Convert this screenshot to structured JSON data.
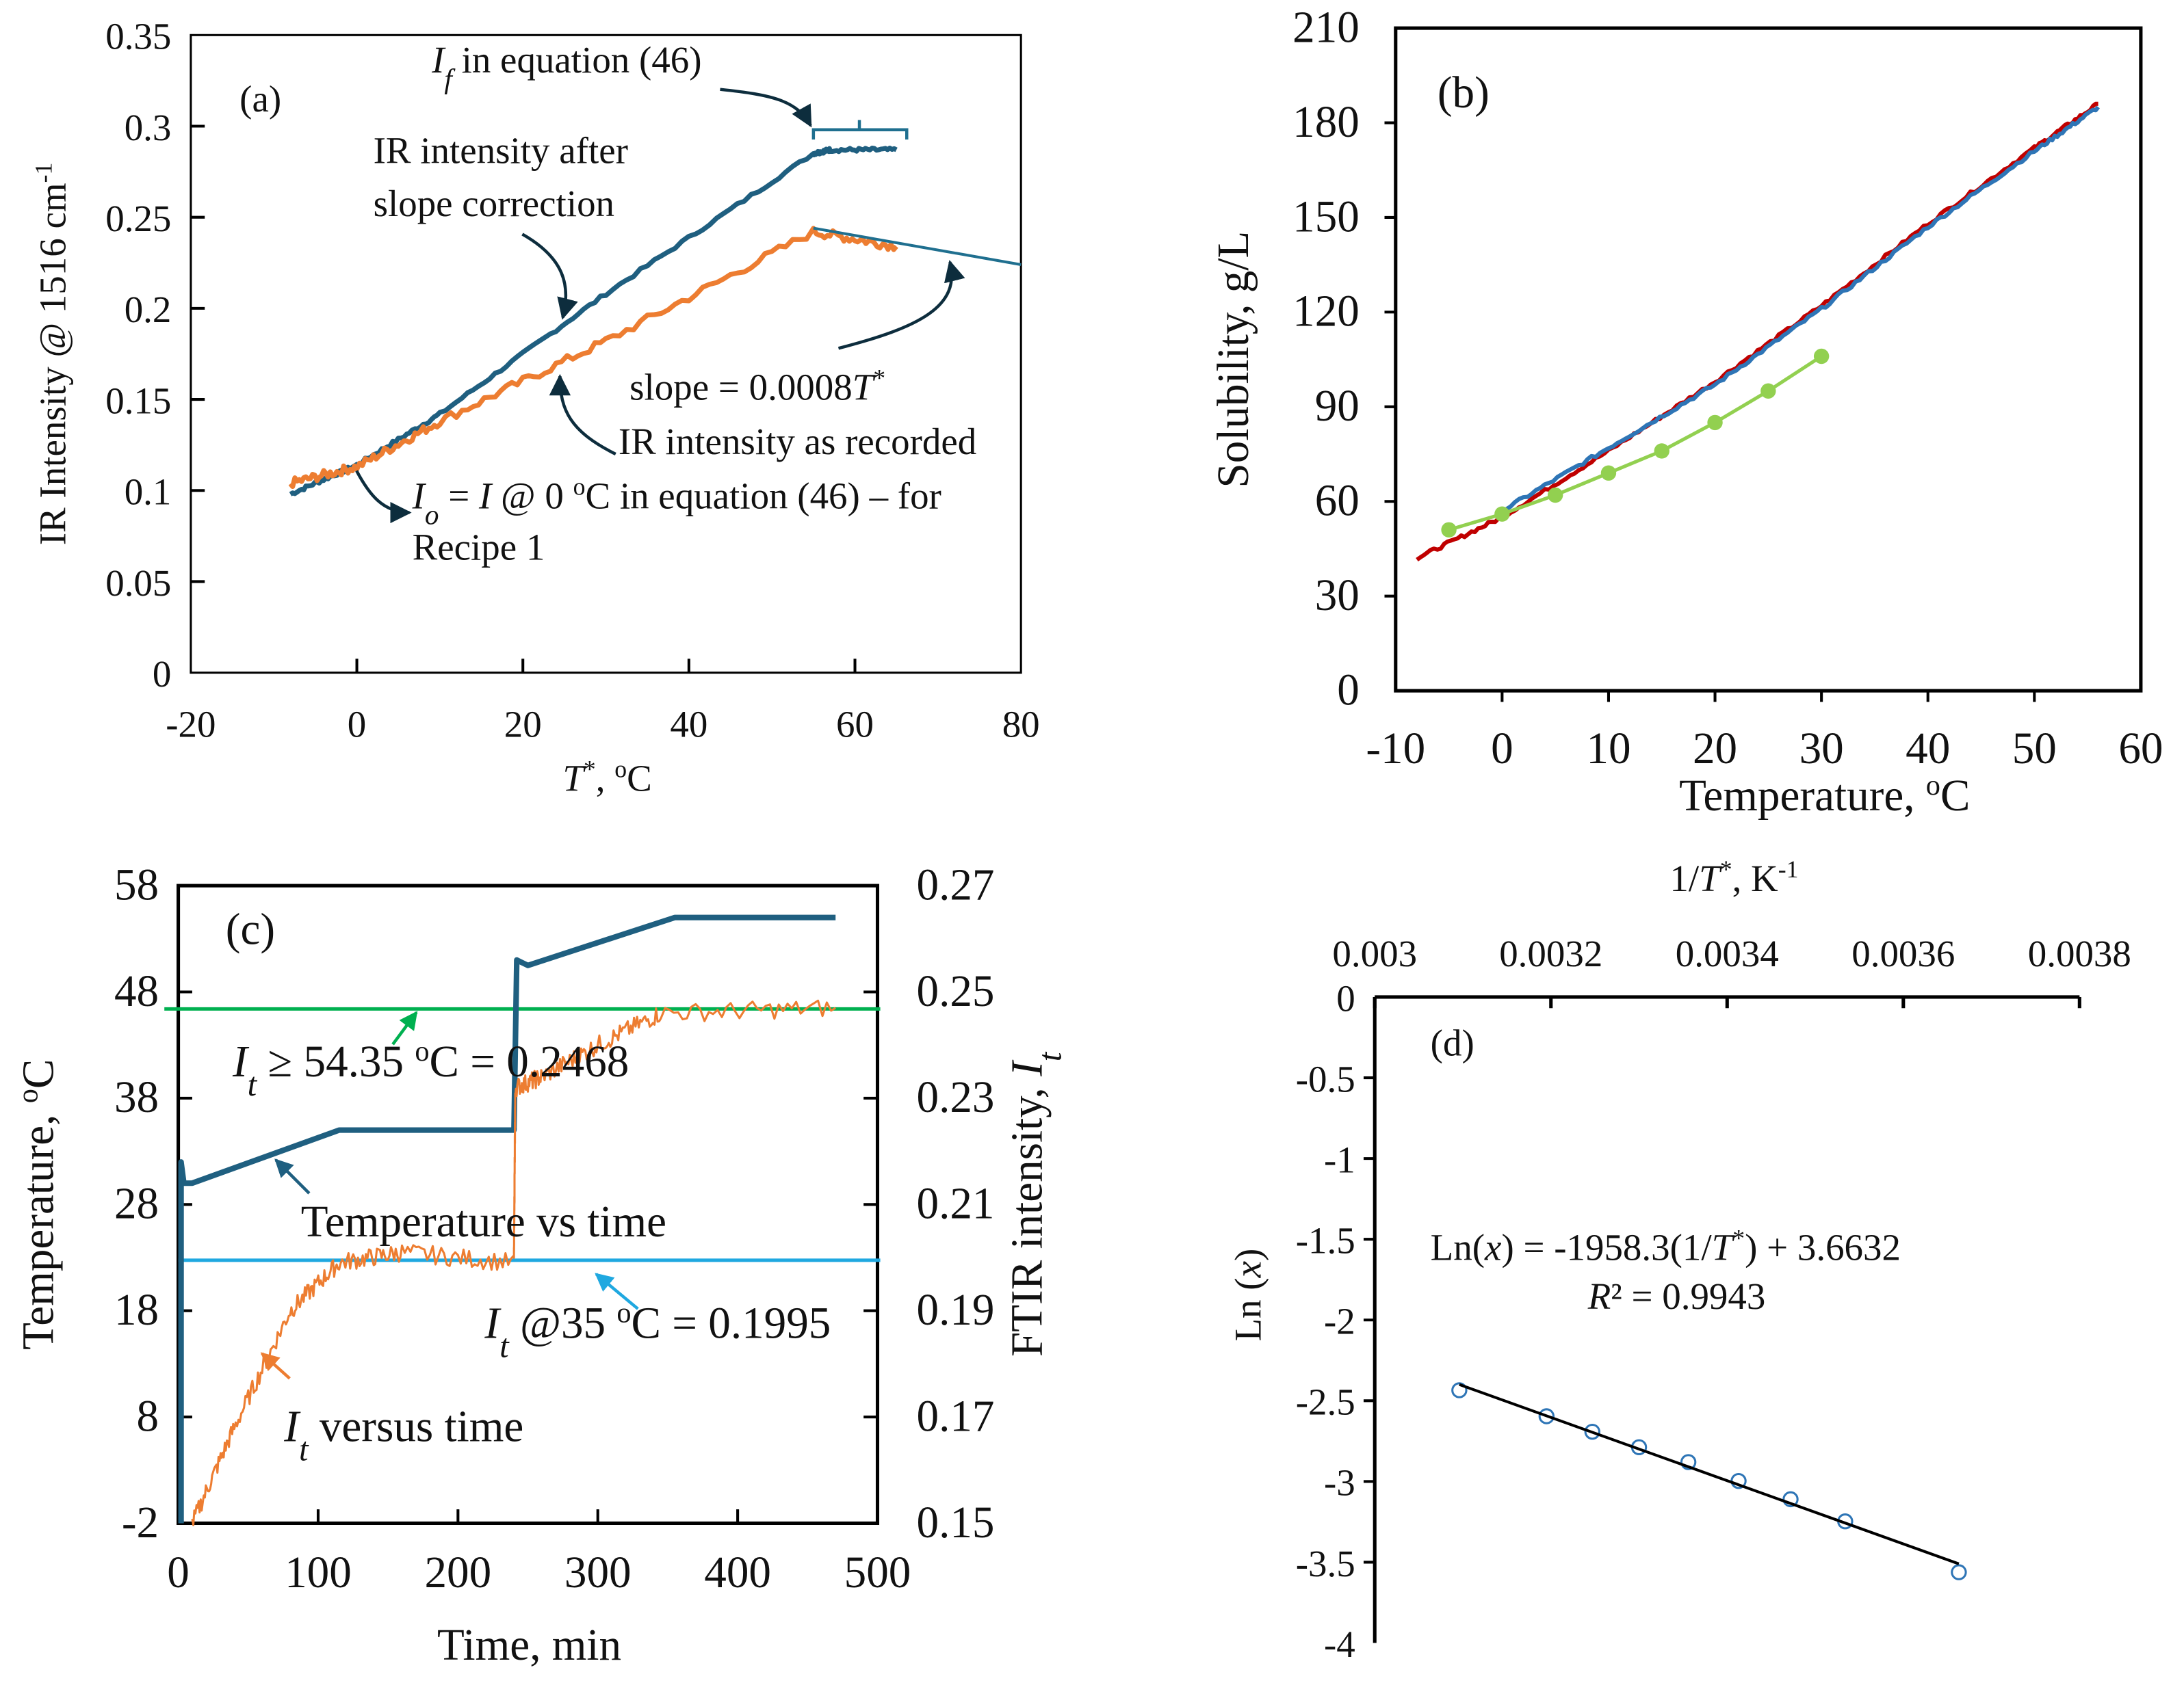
{
  "chart_data": [
    {
      "id": "a",
      "type": "line",
      "panel_label": "(a)",
      "xlabel": [
        {
          "t": "T",
          "i": true
        },
        {
          "t": "*",
          "sup": true
        },
        {
          "t": ", "
        },
        {
          "t": "o",
          "sup": true
        },
        {
          "t": "C"
        }
      ],
      "ylabel": [
        {
          "t": "IR Intensity @ 1516 cm"
        },
        {
          "t": "-1",
          "sup": true
        }
      ],
      "xlim": [
        -20,
        80
      ],
      "ylim": [
        0,
        0.35
      ],
      "xticks": [
        "-20",
        "0",
        "20",
        "40",
        "60",
        "80"
      ],
      "yticks": [
        "0",
        "0.05",
        "0.1",
        "0.15",
        "0.2",
        "0.25",
        "0.3",
        "0.35"
      ],
      "series": [
        {
          "name": "IR intensity after slope correction",
          "color": "#1f5f80",
          "x": [
            -8,
            0,
            10,
            30,
            55,
            57,
            65
          ],
          "y": [
            0.098,
            0.114,
            0.142,
            0.208,
            0.285,
            0.287,
            0.287
          ]
        },
        {
          "name": "IR intensity as recorded",
          "color": "#ed7d31",
          "x": [
            -8,
            0,
            10,
            30,
            55,
            65
          ],
          "y": [
            0.104,
            0.113,
            0.138,
            0.182,
            0.242,
            0.234
          ]
        },
        {
          "name": "slope line",
          "color": "#1f6f8f",
          "x": [
            55,
            80
          ],
          "y": [
            0.244,
            0.224
          ]
        }
      ],
      "annotations": [
        [
          {
            "t": "I",
            "i": true
          },
          {
            "t": "f",
            "sub": true,
            "i": true
          },
          {
            "t": " in equation (46)"
          }
        ],
        [
          {
            "t": "IR intensity after"
          }
        ],
        [
          {
            "t": "slope correction"
          }
        ],
        [
          {
            "t": "slope = 0.0008"
          },
          {
            "t": "T",
            "i": true
          },
          {
            "t": "*",
            "sup": true
          }
        ],
        [
          {
            "t": "IR intensity as recorded"
          }
        ],
        [
          {
            "t": "I",
            "i": true
          },
          {
            "t": "o",
            "sub": true,
            "i": true
          },
          {
            "t": " = "
          },
          {
            "t": "I",
            "i": true
          },
          {
            "t": " @ 0 "
          },
          {
            "t": "o",
            "sup": true
          },
          {
            "t": "C in equation (46) – for"
          }
        ],
        [
          {
            "t": "Recipe  1"
          }
        ]
      ]
    },
    {
      "id": "b",
      "type": "line",
      "panel_label": "(b)",
      "xlabel": [
        {
          "t": "Temperature, "
        },
        {
          "t": "o",
          "sup": true
        },
        {
          "t": "C"
        }
      ],
      "ylabel": [
        {
          "t": "Solubility, g/L"
        }
      ],
      "xlim": [
        -10,
        60
      ],
      "ylim": [
        0,
        210
      ],
      "xticks": [
        "-10",
        "0",
        "10",
        "20",
        "30",
        "40",
        "50",
        "60"
      ],
      "yticks": [
        "0",
        "30",
        "60",
        "90",
        "120",
        "150",
        "180",
        "210"
      ],
      "series": [
        {
          "name": "red fit",
          "color": "#c00000",
          "x": [
            -8,
            0,
            10,
            20,
            30,
            40,
            50,
            56
          ],
          "y": [
            42,
            55,
            76,
            98,
            122,
            148,
            172,
            186
          ]
        },
        {
          "name": "blue measured",
          "color": "#2e75b6",
          "x": [
            0,
            10,
            20,
            30,
            40,
            50,
            56
          ],
          "y": [
            57,
            77,
            97,
            121,
            147,
            171,
            185
          ]
        },
        {
          "name": "green points",
          "color": "#92d050",
          "markers": true,
          "x": [
            -5,
            0,
            5,
            10,
            15,
            20,
            25,
            30
          ],
          "y": [
            51,
            56,
            62,
            69,
            76,
            85,
            95,
            106
          ]
        }
      ]
    },
    {
      "id": "c",
      "type": "line",
      "panel_label": "(c)",
      "xlabel": [
        {
          "t": "Time, min"
        }
      ],
      "ylabel": [
        {
          "t": "Temperature, "
        },
        {
          "t": "o",
          "sup": true
        },
        {
          "t": "C"
        }
      ],
      "y2label": [
        {
          "t": "FTIR intensity, "
        },
        {
          "t": "I",
          "i": true
        },
        {
          "t": "t",
          "sub": true,
          "i": true
        }
      ],
      "xlim": [
        0,
        500
      ],
      "ylim": [
        -2,
        58
      ],
      "y2lim": [
        0.15,
        0.27
      ],
      "xticks": [
        "0",
        "100",
        "200",
        "300",
        "400",
        "500"
      ],
      "yticks": [
        "-2",
        "8",
        "18",
        "28",
        "38",
        "48",
        "58"
      ],
      "y2ticks": [
        "0.15",
        "0.17",
        "0.19",
        "0.21",
        "0.23",
        "0.25",
        "0.27"
      ],
      "series": [
        {
          "name": "Temperature vs time",
          "axis": "left",
          "color": "#1f5f80",
          "x": [
            2,
            2,
            4,
            10,
            115,
            240,
            242,
            250,
            355,
            470
          ],
          "y": [
            -2,
            32,
            30,
            30,
            35,
            35,
            51,
            50.5,
            55,
            55
          ]
        },
        {
          "name": "It versus time",
          "axis": "right",
          "color": "#ed7d31",
          "noisy": true,
          "x": [
            10,
            40,
            80,
            115,
            160,
            240,
            241,
            260,
            300,
            345,
            470
          ],
          "y": [
            0.15,
            0.168,
            0.19,
            0.199,
            0.201,
            0.199,
            0.232,
            0.234,
            0.24,
            0.246,
            0.247
          ]
        }
      ],
      "hlines": [
        {
          "axis": "right",
          "value": 0.2468,
          "color": "#00b050"
        },
        {
          "axis": "right",
          "value": 0.1995,
          "color": "#1fa8e0"
        }
      ],
      "annotations": [
        [
          {
            "t": "I",
            "i": true
          },
          {
            "t": "t",
            "sub": true,
            "i": true
          },
          {
            "t": " ≥ 54.35 "
          },
          {
            "t": "o",
            "sup": true
          },
          {
            "t": "C = 0.2468"
          }
        ],
        [
          {
            "t": "Temperature vs time"
          }
        ],
        [
          {
            "t": "I",
            "i": true
          },
          {
            "t": "t",
            "sub": true,
            "i": true
          },
          {
            "t": " @35 "
          },
          {
            "t": "o",
            "sup": true
          },
          {
            "t": "C = 0.1995"
          }
        ],
        [
          {
            "t": "I",
            "i": true
          },
          {
            "t": "t",
            "sub": true,
            "i": true
          },
          {
            "t": " versus time"
          }
        ]
      ]
    },
    {
      "id": "d",
      "type": "scatter",
      "panel_label": "(d)",
      "xlabel": [
        {
          "t": "1/"
        },
        {
          "t": "T",
          "i": true
        },
        {
          "t": "*",
          "sup": true
        },
        {
          "t": ", K"
        },
        {
          "t": "-1",
          "sup": true
        }
      ],
      "ylabel": [
        {
          "t": "Ln ("
        },
        {
          "t": "x",
          "i": true
        },
        {
          "t": ")"
        }
      ],
      "xlim": [
        0.003,
        0.0038
      ],
      "ylim": [
        -4,
        0
      ],
      "xticks": [
        "0.003",
        "0.0032",
        "0.0034",
        "0.0036",
        "0.0038"
      ],
      "yticks": [
        "-4",
        "-3.5",
        "-3",
        "-2.5",
        "-2",
        "-1.5",
        "-1",
        "-0.5",
        "0"
      ],
      "series": [
        {
          "name": "data",
          "color": "#2e75b6",
          "markers": "open",
          "x": [
            0.003096,
            0.003195,
            0.003247,
            0.0033,
            0.003356,
            0.003413,
            0.003472,
            0.003534,
            0.003663
          ],
          "y": [
            -2.435,
            -2.596,
            -2.692,
            -2.788,
            -2.88,
            -2.997,
            -3.11,
            -3.247,
            -3.562
          ]
        }
      ],
      "trendline": {
        "slope": -1958.3,
        "intercept": 3.6632,
        "r2": 0.9943,
        "x": [
          0.003096,
          0.003663
        ],
        "color": "#000000"
      },
      "annotations": [
        [
          {
            "t": "Ln("
          },
          {
            "t": "x",
            "i": true
          },
          {
            "t": ") = -1958.3(1/"
          },
          {
            "t": "T",
            "i": true
          },
          {
            "t": "*",
            "sup": true
          },
          {
            "t": ") + 3.6632"
          }
        ],
        [
          {
            "t": "R",
            "i": true
          },
          {
            "t": "² = 0.9943"
          }
        ]
      ]
    }
  ]
}
